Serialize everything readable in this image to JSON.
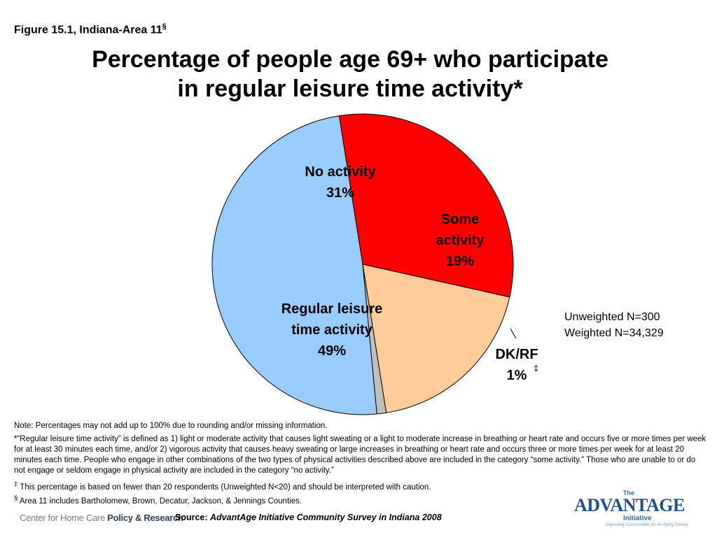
{
  "figure_label": "Figure 15.1, Indiana-Area 11",
  "figure_label_mark": "§",
  "title_line1": "Percentage of people age 69+ who participate",
  "title_line2": "in regular leisure time activity*",
  "chart_data": {
    "type": "pie",
    "title": "Percentage of people age 69+ who participate in regular leisure time activity*",
    "slices": [
      {
        "label": "No activity",
        "value": 31,
        "value_text": "31%",
        "color": "#FF0000",
        "label_lines": [
          "No activity",
          "31%"
        ]
      },
      {
        "label": "Some activity",
        "value": 19,
        "value_text": "19%",
        "color": "#FFCC99",
        "label_lines": [
          "Some",
          "activity",
          "19%"
        ]
      },
      {
        "label": "DK/RF",
        "value": 1,
        "value_text": "1%",
        "color": "#C0C0C0",
        "label_lines": [
          "DK/RF",
          "1%"
        ],
        "footnote_mark": "‡"
      },
      {
        "label": "Regular leisure time activity",
        "value": 49,
        "value_text": "49%",
        "color": "#99CCFF",
        "label_lines": [
          "Regular leisure",
          "time activity",
          "49%"
        ]
      }
    ]
  },
  "sample": {
    "unweighted": "Unweighted N=300",
    "weighted": "Weighted N=34,329"
  },
  "notes": {
    "rounding": "Note: Percentages may not add up to 100% due to rounding and/or missing information.",
    "definition": "*“Regular leisure time activity” is defined as  1) light or moderate activity that causes light sweating or a light to moderate increase in breathing or heart rate and occurs five or more times per week for at least 30 minutes each time, and/or 2) vigorous activity that causes heavy sweating or large increases in breathing or heart rate and occurs three or more times per week for at least 20 minutes each time. People who engage in other combinations of the two types of physical activities described above are included in the category “some activity.” Those who are unable to or do not engage or seldom engage in physical activity are included in the category “no activity.”",
    "double_dagger_mark": "‡",
    "double_dagger": "This percentage is based on fewer than 20 respondents (Unweighted N<20) and should be interpreted with caution.",
    "section_mark": "§",
    "section": "Area 11 includes Bartholomew, Brown, Decatur, Jackson, & Jennings Counties."
  },
  "footer": {
    "logo_left_a": "Center for Home Care ",
    "logo_left_b": "Policy & Research",
    "source_prefix": "Source: ",
    "source_title": "AdvantAge Initiative Community Survey in Indiana 2008"
  },
  "brand_logo": {
    "the": "The",
    "word": "ADVANTAGE",
    "initiative": "Initiative",
    "tagline": "Improving Communities for an Aging Society"
  }
}
